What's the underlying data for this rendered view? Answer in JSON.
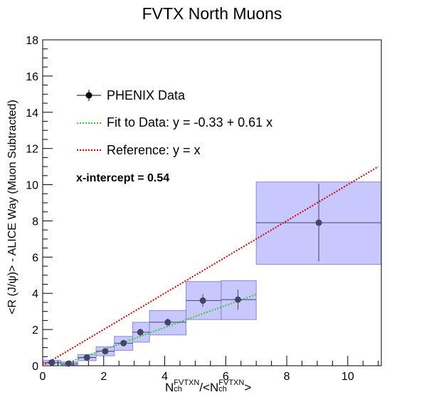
{
  "chart_data": {
    "type": "scatter",
    "title": "FVTX North Muons",
    "ylabel": "<R (J/ψ)> - ALICE Way (Muon Subtracted)",
    "xlabel": {
      "main1": "N",
      "sub1": "ch",
      "sup1": "FVTXN",
      "mid": "/<N",
      "sub2": "ch",
      "sup2": "FVTXN",
      "end": ">"
    },
    "xlim": [
      0,
      11.1
    ],
    "ylim": [
      0,
      18
    ],
    "x_ticks": [
      0,
      2,
      4,
      6,
      8,
      10
    ],
    "y_ticks": [
      0,
      2,
      4,
      6,
      8,
      10,
      12,
      14,
      16,
      18
    ],
    "series": [
      {
        "name": "PHENIX Data",
        "points": [
          {
            "x": 0.3,
            "y": 0.18,
            "yerr": 0.04,
            "box": {
              "x0": 0.0,
              "x1": 0.6,
              "y0": 0.1,
              "y1": 0.3
            }
          },
          {
            "x": 0.85,
            "y": 0.12,
            "yerr": 0.04,
            "box": {
              "x0": 0.6,
              "x1": 1.15,
              "y0": 0.05,
              "y1": 0.22
            }
          },
          {
            "x": 1.45,
            "y": 0.45,
            "yerr": 0.12,
            "box": {
              "x0": 1.15,
              "x1": 1.75,
              "y0": 0.28,
              "y1": 0.62
            }
          },
          {
            "x": 2.05,
            "y": 0.8,
            "yerr": 0.15,
            "box": {
              "x0": 1.75,
              "x1": 2.35,
              "y0": 0.55,
              "y1": 1.05
            }
          },
          {
            "x": 2.65,
            "y": 1.25,
            "yerr": 0.15,
            "box": {
              "x0": 2.35,
              "x1": 2.95,
              "y0": 0.85,
              "y1": 1.62
            }
          },
          {
            "x": 3.2,
            "y": 1.85,
            "yerr": 0.2,
            "box": {
              "x0": 2.95,
              "x1": 3.5,
              "y0": 1.3,
              "y1": 2.4
            }
          },
          {
            "x": 4.1,
            "y": 2.4,
            "yerr": 0.2,
            "box": {
              "x0": 3.5,
              "x1": 4.7,
              "y0": 1.7,
              "y1": 3.05
            }
          },
          {
            "x": 5.25,
            "y": 3.6,
            "yerr": 0.35,
            "box": {
              "x0": 4.7,
              "x1": 5.85,
              "y0": 2.55,
              "y1": 4.65
            }
          },
          {
            "x": 6.4,
            "y": 3.65,
            "yerr": 0.55,
            "box": {
              "x0": 5.85,
              "x1": 7.0,
              "y0": 2.55,
              "y1": 4.7
            }
          },
          {
            "x": 9.05,
            "y": 7.9,
            "yerr": 2.15,
            "box": {
              "x0": 7.0,
              "x1": 11.1,
              "y0": 5.6,
              "y1": 10.15
            }
          }
        ]
      },
      {
        "name": "Fit to Data: y = -0.33 + 0.61 x",
        "line": {
          "intercept": -0.33,
          "slope": 0.61,
          "x_range": [
            0.0,
            7.0
          ]
        },
        "color": "#33cc33"
      },
      {
        "name": "Reference: y = x",
        "line": {
          "intercept": 0,
          "slope": 1,
          "x_range": [
            0.0,
            11.0
          ]
        },
        "color": "#cc0000"
      }
    ],
    "annotation": "x-intercept = 0.54",
    "legend_placement": "top-left",
    "box_color": "#c8c8ff",
    "box_edge_color": "#8888dd",
    "marker_color": "#444466",
    "grid": false
  },
  "legend": {
    "data_label": "PHENIX Data",
    "fit_label": "Fit to Data: y = -0.33 + 0.61 x",
    "ref_label": "Reference: y = x"
  }
}
